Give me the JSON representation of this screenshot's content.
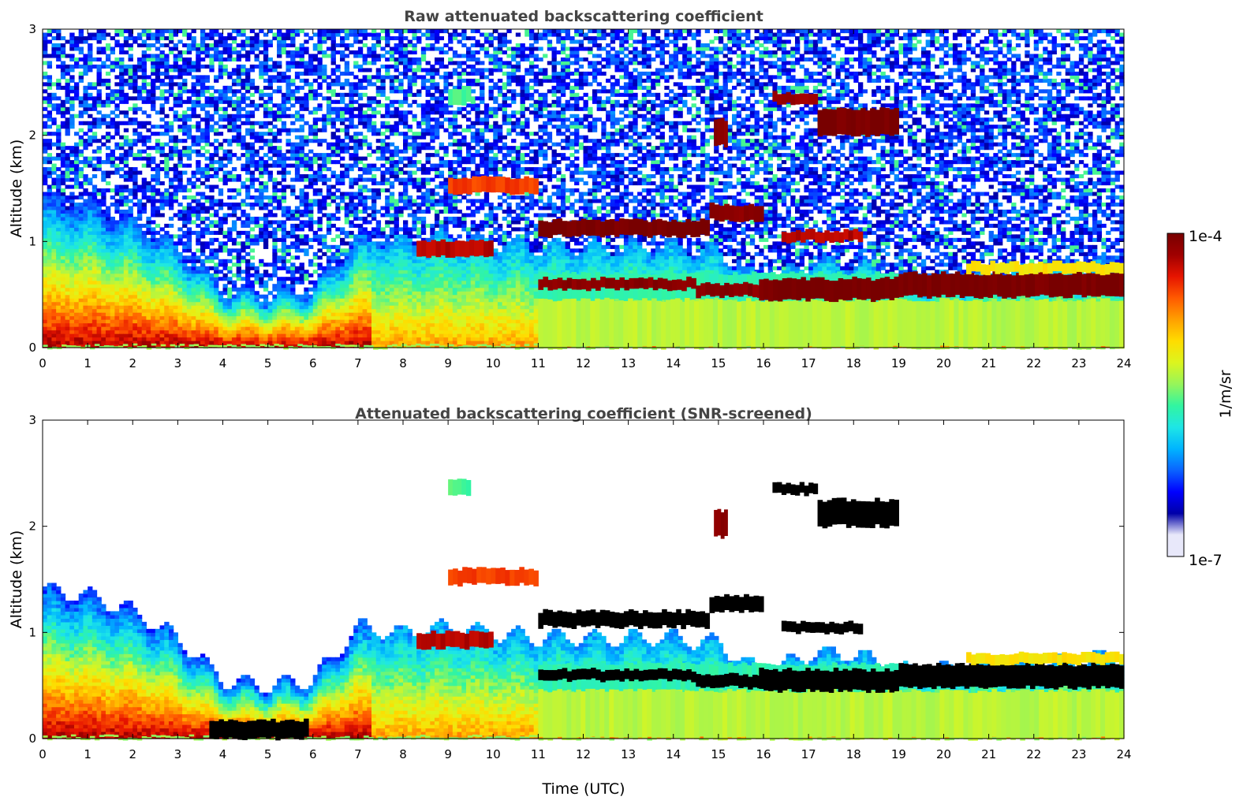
{
  "colors": {
    "colormap": [
      "#0000a8",
      "#0000ff",
      "#0a64ff",
      "#00b4ff",
      "#1ee6e6",
      "#32f5a0",
      "#96f55a",
      "#dcf51e",
      "#ffdc00",
      "#ffa000",
      "#ff5a00",
      "#e61400",
      "#a00000",
      "#780000"
    ],
    "colormap_low": "#e8e8fa",
    "clipped": "#000000"
  },
  "colorbar": {
    "label": "1/m/sr",
    "max_label": "1e-4",
    "min_label": "1e-7",
    "scale": "log"
  },
  "chart_data": [
    {
      "type": "heatmap",
      "title": "Raw attenuated backscattering coefficient",
      "xlabel": "",
      "ylabel": "Altitude (km)",
      "xlim": [
        0,
        24
      ],
      "ylim": [
        0,
        3
      ],
      "xticks": [
        "0",
        "1",
        "2",
        "3",
        "4",
        "5",
        "6",
        "7",
        "8",
        "9",
        "10",
        "11",
        "12",
        "13",
        "14",
        "15",
        "16",
        "17",
        "18",
        "19",
        "20",
        "21",
        "22",
        "23",
        "24"
      ],
      "yticks": [
        "0",
        "1",
        "2",
        "3"
      ],
      "noise": "raw",
      "layers": [
        {
          "t": [
            0,
            24
          ],
          "bottom": 0,
          "top": 0.02,
          "log10": -5.6
        },
        {
          "t": [
            11,
            19
          ],
          "bottom": 0.45,
          "top": 0.7,
          "log10": -5.9
        },
        {
          "t": [
            11,
            24
          ],
          "bottom": 0.0,
          "top": 0.45,
          "log10": -5.5
        },
        {
          "t": [
            8.3,
            10
          ],
          "bottom": 0.85,
          "top": 1.0,
          "log10": -4.3
        },
        {
          "t": [
            11,
            14.5
          ],
          "bottom": 0.55,
          "top": 0.65,
          "log10": -4.1
        },
        {
          "t": [
            14.5,
            19
          ],
          "bottom": 0.48,
          "top": 0.6,
          "log10": -4.1
        },
        {
          "t": [
            15.9,
            19
          ],
          "bottom": 0.45,
          "top": 0.65,
          "log10": -4.0
        },
        {
          "t": [
            19,
            24
          ],
          "bottom": 0.48,
          "top": 0.7,
          "log10": -4.0
        },
        {
          "t": [
            20.5,
            24
          ],
          "bottom": 0.7,
          "top": 0.8,
          "log10": -5.2
        },
        {
          "t": [
            9,
            11
          ],
          "bottom": 1.45,
          "top": 1.6,
          "log10": -4.6
        },
        {
          "t": [
            11,
            14.8
          ],
          "bottom": 1.05,
          "top": 1.2,
          "log10": -4.0
        },
        {
          "t": [
            14.8,
            16
          ],
          "bottom": 1.2,
          "top": 1.35,
          "log10": -4.1
        },
        {
          "t": [
            14.9,
            15.2
          ],
          "bottom": 1.9,
          "top": 2.15,
          "log10": -4.1
        },
        {
          "t": [
            16.2,
            17.2
          ],
          "bottom": 2.3,
          "top": 2.4,
          "log10": -4.2
        },
        {
          "t": [
            17.2,
            19
          ],
          "bottom": 2.0,
          "top": 2.25,
          "log10": -4.0
        },
        {
          "t": [
            16.4,
            18.2
          ],
          "bottom": 1.0,
          "top": 1.1,
          "log10": -4.3
        },
        {
          "t": [
            9,
            9.5
          ],
          "bottom": 2.3,
          "top": 2.45,
          "log10": -5.8
        }
      ]
    },
    {
      "type": "heatmap",
      "title": "Attenuated backscattering coefficient (SNR-screened)",
      "xlabel": "Time (UTC)",
      "ylabel": "Altitude (km)",
      "xlim": [
        0,
        24
      ],
      "ylim": [
        0,
        3
      ],
      "xticks": [
        "0",
        "1",
        "2",
        "3",
        "4",
        "5",
        "6",
        "7",
        "8",
        "9",
        "10",
        "11",
        "12",
        "13",
        "14",
        "15",
        "16",
        "17",
        "18",
        "19",
        "20",
        "21",
        "22",
        "23",
        "24"
      ],
      "yticks": [
        "0",
        "1",
        "2",
        "3"
      ],
      "noise": "screened",
      "layers": [
        {
          "t": [
            0,
            24
          ],
          "bottom": 0,
          "top": 0.02,
          "log10": -5.6
        },
        {
          "t": [
            11,
            19
          ],
          "bottom": 0.45,
          "top": 0.7,
          "log10": -5.9
        },
        {
          "t": [
            11,
            24
          ],
          "bottom": 0.0,
          "top": 0.45,
          "log10": -5.5
        },
        {
          "t": [
            8.3,
            10
          ],
          "bottom": 0.85,
          "top": 1.0,
          "log10": -4.3
        },
        {
          "t": [
            3.7,
            5.9
          ],
          "bottom": 0.0,
          "top": 0.17,
          "log10": -3.5
        },
        {
          "t": [
            11,
            14.5
          ],
          "bottom": 0.55,
          "top": 0.65,
          "log10": -3.5
        },
        {
          "t": [
            14.5,
            19
          ],
          "bottom": 0.48,
          "top": 0.6,
          "log10": -3.5
        },
        {
          "t": [
            15.9,
            19
          ],
          "bottom": 0.45,
          "top": 0.65,
          "log10": -3.5
        },
        {
          "t": [
            19,
            24
          ],
          "bottom": 0.48,
          "top": 0.7,
          "log10": -3.5
        },
        {
          "t": [
            20.5,
            24
          ],
          "bottom": 0.7,
          "top": 0.8,
          "log10": -5.2
        },
        {
          "t": [
            9,
            11
          ],
          "bottom": 1.45,
          "top": 1.6,
          "log10": -4.6
        },
        {
          "t": [
            11,
            14.8
          ],
          "bottom": 1.05,
          "top": 1.2,
          "log10": -3.5
        },
        {
          "t": [
            14.8,
            16
          ],
          "bottom": 1.2,
          "top": 1.35,
          "log10": -3.5
        },
        {
          "t": [
            14.9,
            15.2
          ],
          "bottom": 1.9,
          "top": 2.15,
          "log10": -4.1
        },
        {
          "t": [
            16.2,
            17.2
          ],
          "bottom": 2.3,
          "top": 2.4,
          "log10": -3.5
        },
        {
          "t": [
            17.2,
            19
          ],
          "bottom": 2.0,
          "top": 2.25,
          "log10": -3.5
        },
        {
          "t": [
            16.4,
            18.2
          ],
          "bottom": 1.0,
          "top": 1.1,
          "log10": -3.5
        },
        {
          "t": [
            9,
            9.5
          ],
          "bottom": 2.3,
          "top": 2.45,
          "log10": -5.8
        }
      ]
    }
  ]
}
